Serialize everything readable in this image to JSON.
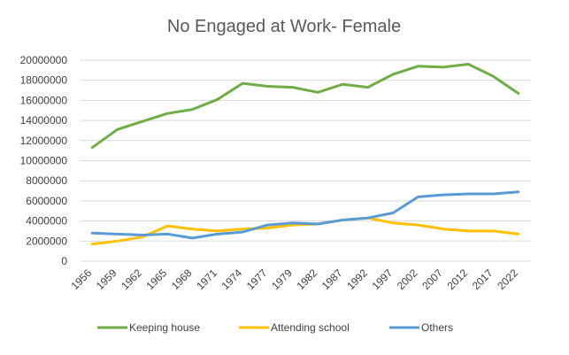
{
  "chart_data": {
    "type": "line",
    "title": "No Engaged at Work- Female",
    "xlabel": "",
    "ylabel": "",
    "categories": [
      "1956",
      "1959",
      "1962",
      "1965",
      "1968",
      "1971",
      "1974",
      "1977",
      "1979",
      "1982",
      "1987",
      "1992",
      "1997",
      "2002",
      "2007",
      "2012",
      "2017",
      "2022"
    ],
    "ylim": [
      0,
      20000000
    ],
    "yticks": [
      0,
      2000000,
      4000000,
      6000000,
      8000000,
      10000000,
      12000000,
      14000000,
      16000000,
      18000000,
      20000000
    ],
    "grid": true,
    "legend_position": "bottom",
    "series": [
      {
        "name": "Keeping house",
        "color": "#70ad47",
        "values": [
          11300000,
          13100000,
          13900000,
          14700000,
          15100000,
          16100000,
          17700000,
          17400000,
          17300000,
          16800000,
          17600000,
          17300000,
          18600000,
          19400000,
          19300000,
          19600000,
          18400000,
          16700000
        ]
      },
      {
        "name": "Attending school",
        "color": "#ffc000",
        "values": [
          1700000,
          2000000,
          2400000,
          3500000,
          3200000,
          3000000,
          3200000,
          3300000,
          3600000,
          3700000,
          4100000,
          4300000,
          3800000,
          3600000,
          3200000,
          3000000,
          3000000,
          2700000
        ]
      },
      {
        "name": "Others",
        "color": "#5b9bd5",
        "values": [
          2800000,
          2700000,
          2600000,
          2700000,
          2300000,
          2700000,
          2900000,
          3600000,
          3800000,
          3700000,
          4100000,
          4300000,
          4800000,
          6400000,
          6600000,
          6700000,
          6700000,
          6900000
        ]
      }
    ]
  }
}
